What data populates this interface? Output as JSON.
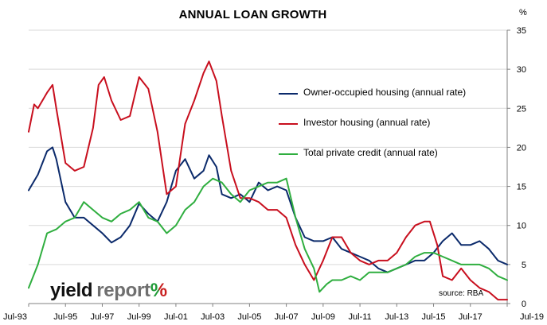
{
  "chart_data": {
    "type": "line",
    "title": "ANNUAL LOAN GROWTH",
    "y_unit": "%",
    "ylim": [
      0,
      35
    ],
    "y_ticks": [
      "0",
      "5",
      "10",
      "15",
      "20",
      "25",
      "30",
      "35"
    ],
    "x_tick_labels": [
      "Jul-93",
      "Jul-95",
      "Jul-97",
      "Jul-99",
      "Jul-01",
      "Jul-03",
      "Jul-05",
      "Jul-07",
      "Jul-09",
      "Jul-11",
      "Jul-13",
      "Jul-15",
      "Jul-17",
      "Jul-19"
    ],
    "x_range": [
      1993.5,
      2019.5
    ],
    "grid": "horizontal",
    "legend_position": "center-right",
    "series": [
      {
        "name": "Owner-occupied housing (annual rate)",
        "color": "#0b2a6b",
        "points": [
          [
            1993.5,
            14.5
          ],
          [
            1994.0,
            16.5
          ],
          [
            1994.5,
            19.5
          ],
          [
            1994.8,
            20.0
          ],
          [
            1995.0,
            18.5
          ],
          [
            1995.5,
            13.0
          ],
          [
            1996.0,
            11.0
          ],
          [
            1996.5,
            11.0
          ],
          [
            1997.0,
            10.0
          ],
          [
            1997.5,
            9.0
          ],
          [
            1998.0,
            7.8
          ],
          [
            1998.5,
            8.5
          ],
          [
            1999.0,
            10.0
          ],
          [
            1999.5,
            12.8
          ],
          [
            2000.0,
            11.5
          ],
          [
            2000.5,
            10.5
          ],
          [
            2001.0,
            13.0
          ],
          [
            2001.5,
            17.0
          ],
          [
            2002.0,
            18.5
          ],
          [
            2002.5,
            16.0
          ],
          [
            2003.0,
            17.0
          ],
          [
            2003.3,
            19.0
          ],
          [
            2003.7,
            17.5
          ],
          [
            2004.0,
            14.0
          ],
          [
            2004.5,
            13.5
          ],
          [
            2005.0,
            14.0
          ],
          [
            2005.5,
            13.0
          ],
          [
            2006.0,
            15.5
          ],
          [
            2006.5,
            14.5
          ],
          [
            2007.0,
            15.0
          ],
          [
            2007.5,
            14.5
          ],
          [
            2008.0,
            11.0
          ],
          [
            2008.5,
            8.5
          ],
          [
            2009.0,
            8.0
          ],
          [
            2009.5,
            8.0
          ],
          [
            2010.0,
            8.5
          ],
          [
            2010.5,
            7.0
          ],
          [
            2011.0,
            6.5
          ],
          [
            2011.5,
            6.0
          ],
          [
            2012.0,
            5.5
          ],
          [
            2012.5,
            4.5
          ],
          [
            2013.0,
            4.0
          ],
          [
            2013.5,
            4.5
          ],
          [
            2014.0,
            5.0
          ],
          [
            2014.5,
            5.5
          ],
          [
            2015.0,
            5.5
          ],
          [
            2015.5,
            6.5
          ],
          [
            2016.0,
            8.0
          ],
          [
            2016.5,
            9.0
          ],
          [
            2017.0,
            7.5
          ],
          [
            2017.5,
            7.5
          ],
          [
            2018.0,
            8.0
          ],
          [
            2018.5,
            7.0
          ],
          [
            2019.0,
            5.5
          ],
          [
            2019.5,
            5.0
          ]
        ]
      },
      {
        "name": "Investor housing (annual rate)",
        "color": "#c80f1e",
        "points": [
          [
            1993.5,
            22.0
          ],
          [
            1993.8,
            25.5
          ],
          [
            1994.0,
            25.0
          ],
          [
            1994.5,
            27.0
          ],
          [
            1994.8,
            28.0
          ],
          [
            1995.0,
            25.0
          ],
          [
            1995.5,
            18.0
          ],
          [
            1996.0,
            17.0
          ],
          [
            1996.5,
            17.5
          ],
          [
            1997.0,
            22.5
          ],
          [
            1997.3,
            28.0
          ],
          [
            1997.6,
            29.0
          ],
          [
            1998.0,
            26.0
          ],
          [
            1998.5,
            23.5
          ],
          [
            1999.0,
            24.0
          ],
          [
            1999.5,
            29.0
          ],
          [
            2000.0,
            27.5
          ],
          [
            2000.5,
            22.0
          ],
          [
            2001.0,
            14.0
          ],
          [
            2001.5,
            15.0
          ],
          [
            2002.0,
            23.0
          ],
          [
            2002.5,
            26.0
          ],
          [
            2003.0,
            29.5
          ],
          [
            2003.3,
            31.0
          ],
          [
            2003.7,
            28.5
          ],
          [
            2004.0,
            24.0
          ],
          [
            2004.5,
            17.0
          ],
          [
            2005.0,
            13.5
          ],
          [
            2005.5,
            13.5
          ],
          [
            2006.0,
            13.0
          ],
          [
            2006.5,
            12.0
          ],
          [
            2007.0,
            12.0
          ],
          [
            2007.5,
            11.0
          ],
          [
            2008.0,
            7.5
          ],
          [
            2008.5,
            5.0
          ],
          [
            2009.0,
            3.0
          ],
          [
            2009.5,
            5.5
          ],
          [
            2010.0,
            8.5
          ],
          [
            2010.5,
            8.5
          ],
          [
            2011.0,
            6.5
          ],
          [
            2011.5,
            5.5
          ],
          [
            2012.0,
            5.0
          ],
          [
            2012.5,
            5.5
          ],
          [
            2013.0,
            5.5
          ],
          [
            2013.5,
            6.5
          ],
          [
            2014.0,
            8.5
          ],
          [
            2014.5,
            10.0
          ],
          [
            2015.0,
            10.5
          ],
          [
            2015.3,
            10.5
          ],
          [
            2015.7,
            7.5
          ],
          [
            2016.0,
            3.5
          ],
          [
            2016.5,
            3.0
          ],
          [
            2017.0,
            4.5
          ],
          [
            2017.5,
            3.0
          ],
          [
            2018.0,
            2.0
          ],
          [
            2018.5,
            1.5
          ],
          [
            2019.0,
            0.5
          ],
          [
            2019.5,
            0.5
          ]
        ]
      },
      {
        "name": "Total private credit (annual rate)",
        "color": "#2fae3f",
        "points": [
          [
            1993.5,
            2.0
          ],
          [
            1994.0,
            5.0
          ],
          [
            1994.5,
            9.0
          ],
          [
            1995.0,
            9.5
          ],
          [
            1995.5,
            10.5
          ],
          [
            1996.0,
            11.0
          ],
          [
            1996.5,
            13.0
          ],
          [
            1997.0,
            12.0
          ],
          [
            1997.5,
            11.0
          ],
          [
            1998.0,
            10.5
          ],
          [
            1998.5,
            11.5
          ],
          [
            1999.0,
            12.0
          ],
          [
            1999.5,
            13.0
          ],
          [
            2000.0,
            11.0
          ],
          [
            2000.5,
            10.5
          ],
          [
            2001.0,
            9.0
          ],
          [
            2001.5,
            10.0
          ],
          [
            2002.0,
            12.0
          ],
          [
            2002.5,
            13.0
          ],
          [
            2003.0,
            15.0
          ],
          [
            2003.5,
            16.0
          ],
          [
            2004.0,
            15.5
          ],
          [
            2004.5,
            14.0
          ],
          [
            2005.0,
            13.0
          ],
          [
            2005.5,
            14.5
          ],
          [
            2006.0,
            15.0
          ],
          [
            2006.5,
            15.5
          ],
          [
            2007.0,
            15.5
          ],
          [
            2007.5,
            16.0
          ],
          [
            2008.0,
            11.0
          ],
          [
            2008.5,
            7.0
          ],
          [
            2009.0,
            4.5
          ],
          [
            2009.3,
            1.5
          ],
          [
            2009.7,
            2.5
          ],
          [
            2010.0,
            3.0
          ],
          [
            2010.5,
            3.0
          ],
          [
            2011.0,
            3.5
          ],
          [
            2011.5,
            3.0
          ],
          [
            2012.0,
            4.0
          ],
          [
            2012.5,
            4.0
          ],
          [
            2013.0,
            4.0
          ],
          [
            2013.5,
            4.5
          ],
          [
            2014.0,
            5.0
          ],
          [
            2014.5,
            6.0
          ],
          [
            2015.0,
            6.5
          ],
          [
            2015.5,
            6.5
          ],
          [
            2016.0,
            6.0
          ],
          [
            2016.5,
            5.5
          ],
          [
            2017.0,
            5.0
          ],
          [
            2017.5,
            5.0
          ],
          [
            2018.0,
            5.0
          ],
          [
            2018.5,
            4.5
          ],
          [
            2019.0,
            3.5
          ],
          [
            2019.5,
            3.0
          ]
        ]
      }
    ],
    "source_note": "source: RBA"
  },
  "branding": {
    "part1": "yield",
    "part2": "report",
    "part3": "%",
    "part3_color_a": "#1e9a36",
    "part3_color_b": "#c81e1e"
  }
}
